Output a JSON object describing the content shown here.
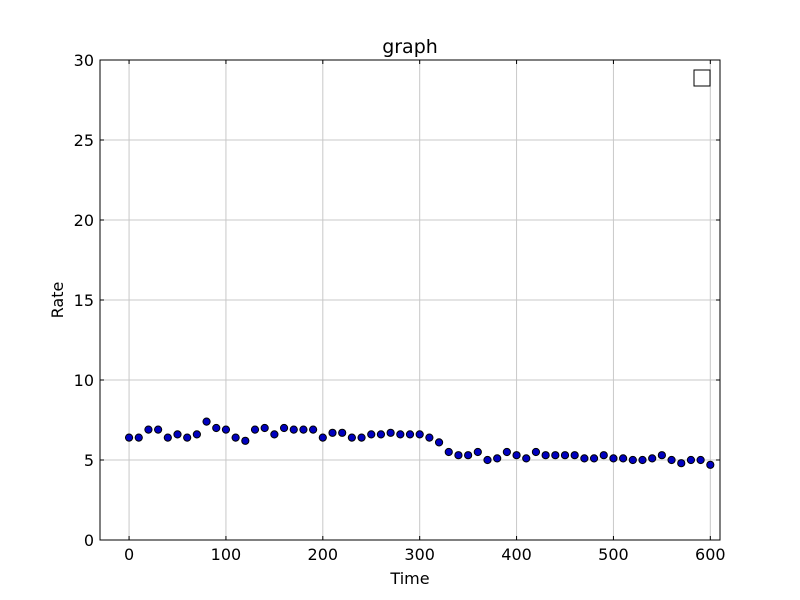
{
  "chart_data": {
    "type": "scatter",
    "title": "graph",
    "xlabel": "Time",
    "ylabel": "Rate",
    "xlim": [
      -30,
      610
    ],
    "ylim": [
      0,
      30
    ],
    "xticks": [
      0,
      100,
      200,
      300,
      400,
      500,
      600
    ],
    "yticks": [
      0,
      5,
      10,
      15,
      20,
      25,
      30
    ],
    "grid": true,
    "legend": {
      "placement": "top-right",
      "entries": []
    },
    "colors": {
      "marker_fill": "#0000bf",
      "marker_edge": "#000000",
      "grid": "#c8c8c8"
    },
    "series": [
      {
        "x": [
          0,
          10,
          20,
          30,
          40,
          50,
          60,
          70,
          80,
          90,
          100,
          110,
          120,
          130,
          140,
          150,
          160,
          170,
          180,
          190,
          200,
          210,
          220,
          230,
          240,
          250,
          260,
          270,
          280,
          290,
          300,
          310,
          320,
          330,
          340,
          350,
          360,
          370,
          380,
          390,
          400,
          410,
          420,
          430,
          440,
          450,
          460,
          470,
          480,
          490,
          500,
          510,
          520,
          530,
          540,
          550,
          560,
          570,
          580,
          590,
          600
        ],
        "y": [
          6.4,
          6.4,
          6.9,
          6.9,
          6.4,
          6.6,
          6.4,
          6.6,
          7.4,
          7.0,
          6.9,
          6.4,
          6.2,
          6.9,
          7.0,
          6.6,
          7.0,
          6.9,
          6.9,
          6.9,
          6.4,
          6.7,
          6.7,
          6.4,
          6.4,
          6.6,
          6.6,
          6.7,
          6.6,
          6.6,
          6.6,
          6.4,
          6.1,
          5.5,
          5.3,
          5.3,
          5.5,
          5.0,
          5.1,
          5.5,
          5.3,
          5.1,
          5.5,
          5.3,
          5.3,
          5.3,
          5.3,
          5.1,
          5.1,
          5.3,
          5.1,
          5.1,
          5.0,
          5.0,
          5.1,
          5.3,
          5.0,
          4.8,
          5.0,
          5.0,
          4.7
        ]
      }
    ]
  }
}
